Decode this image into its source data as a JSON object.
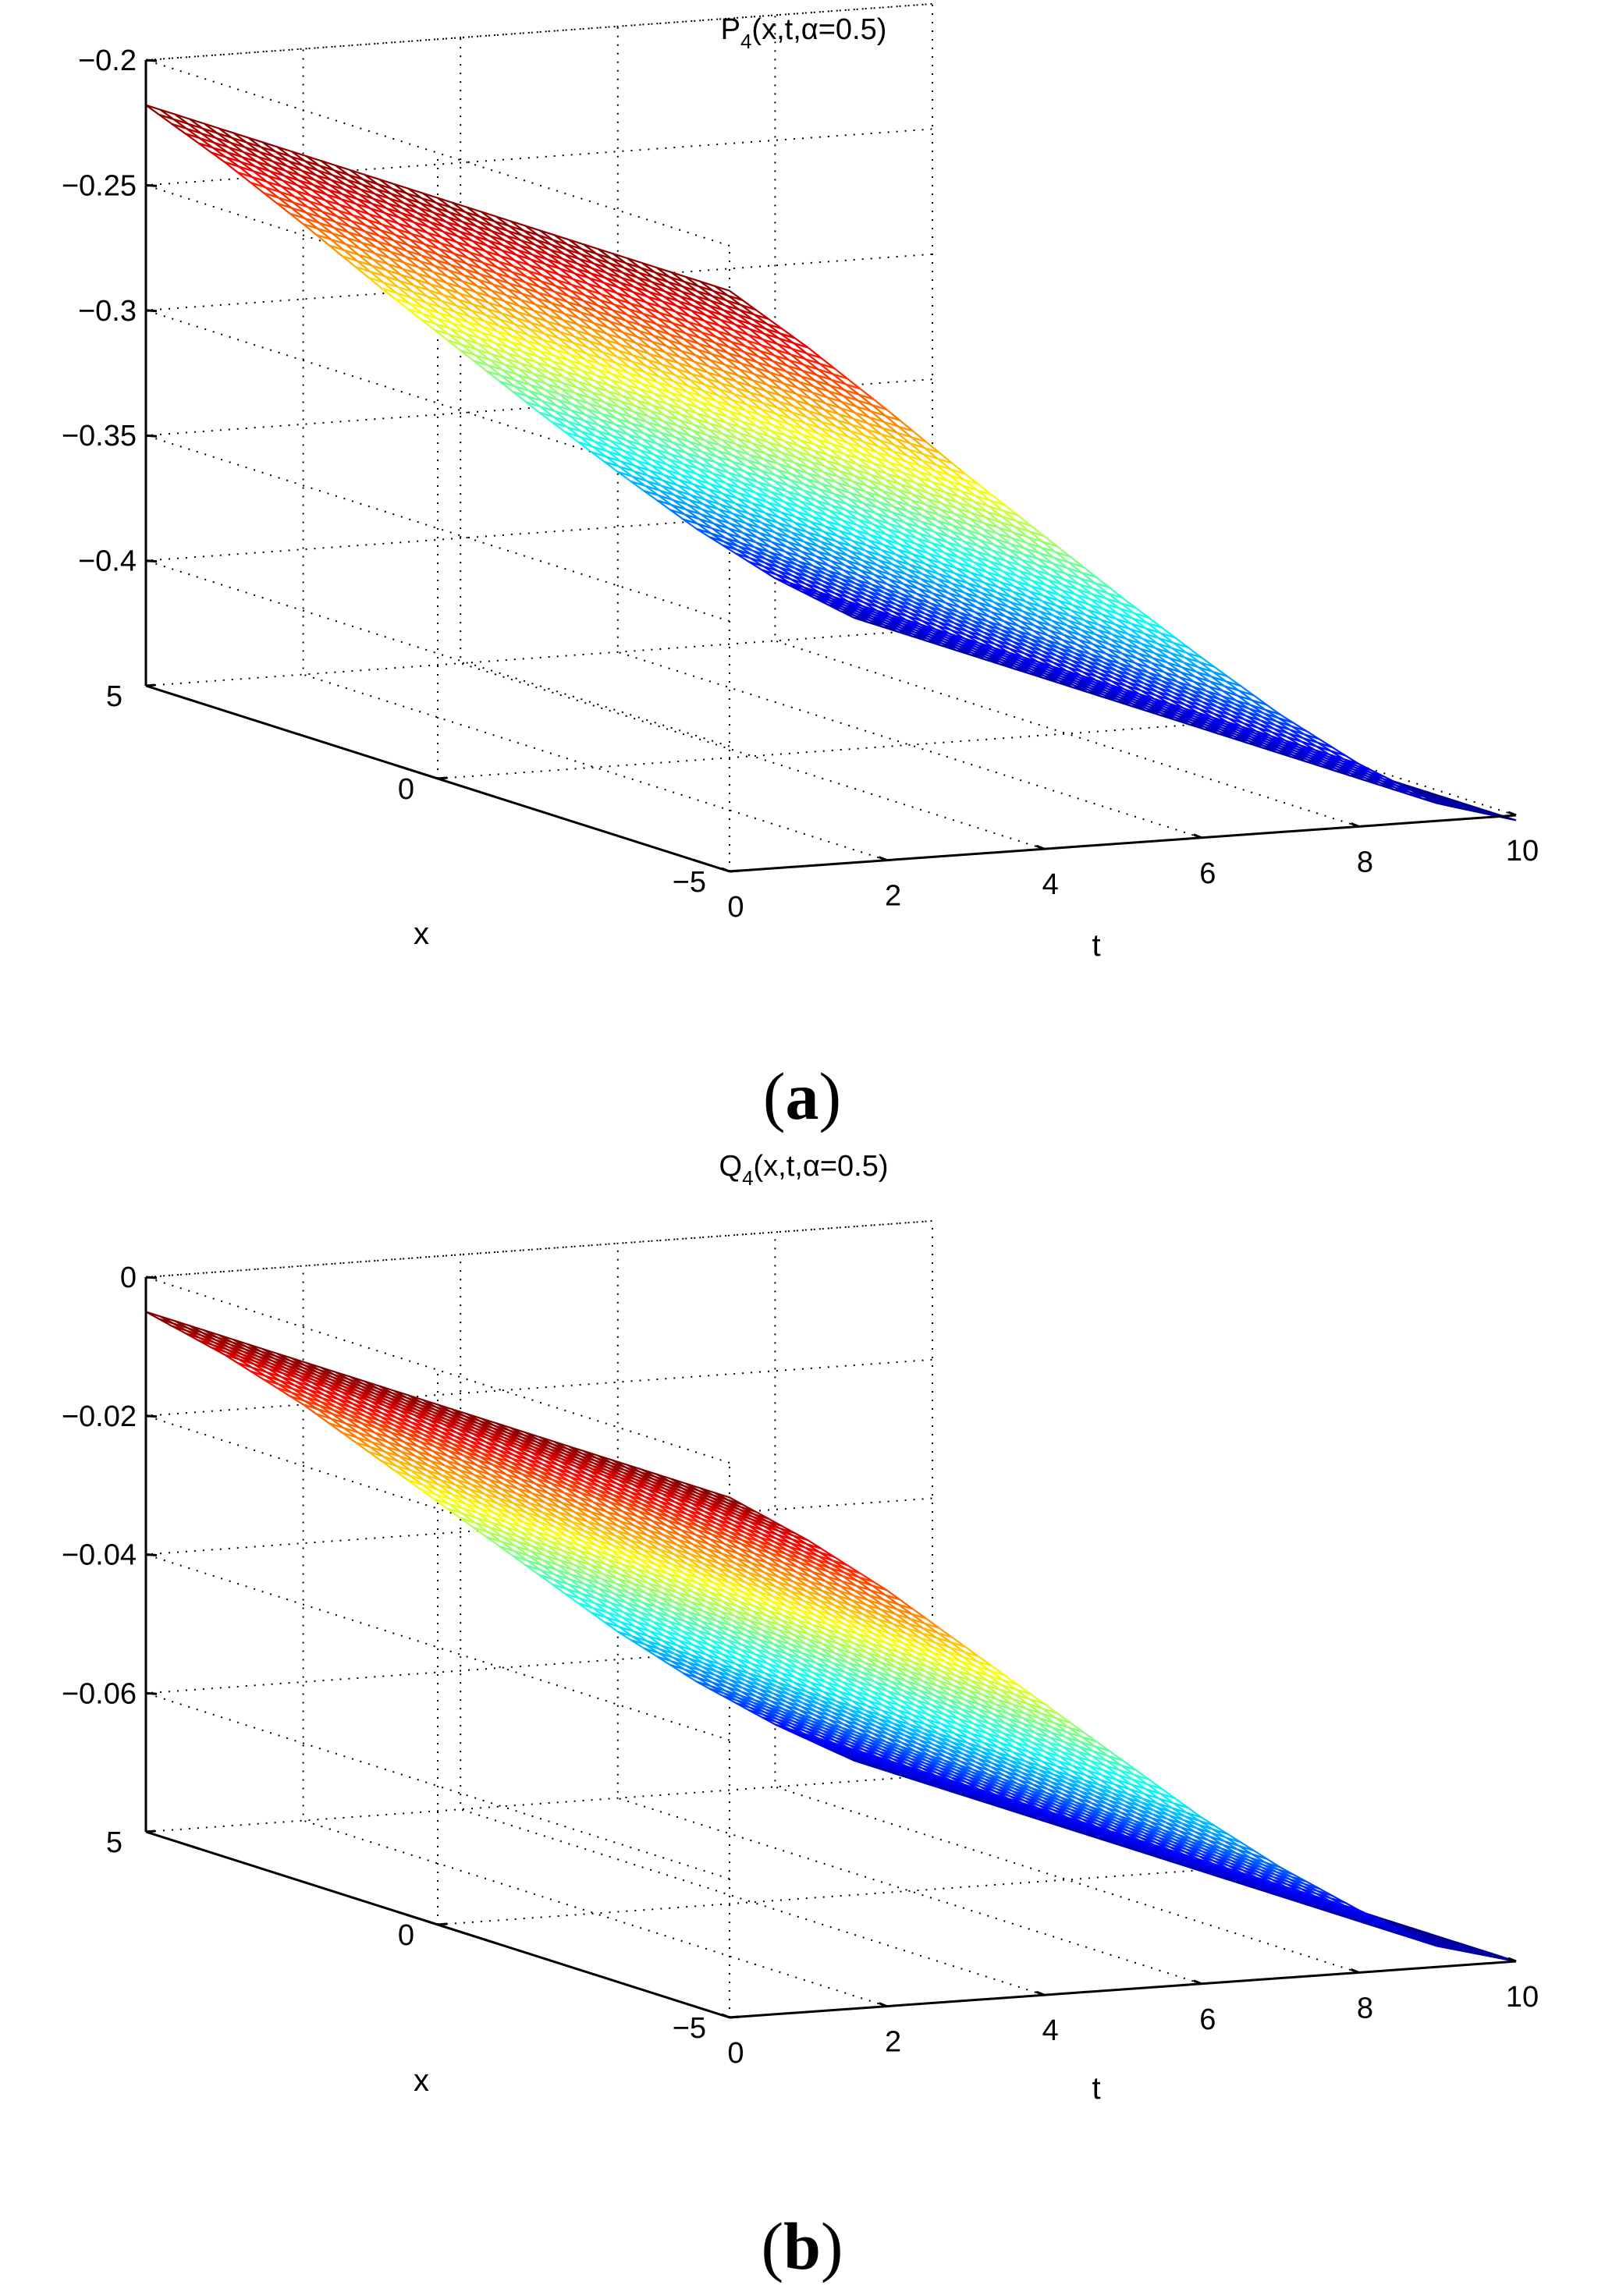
{
  "figure": {
    "panels": [
      {
        "label_open": "(",
        "label_letter": "a",
        "label_close": ")"
      },
      {
        "label_open": "(",
        "label_letter": "b",
        "label_close": ")"
      }
    ]
  },
  "chart_data": [
    {
      "type": "surface",
      "title_base": "P",
      "title_sub": "4",
      "title_rest": "(x,t,α=0.5)",
      "xlabel": "x",
      "tlabel": "t",
      "zlabel": "",
      "x_range": [
        -5,
        5
      ],
      "t_range": [
        0,
        10
      ],
      "z_range": [
        -0.45,
        -0.2
      ],
      "x_ticks": [
        -5,
        0,
        5
      ],
      "t_ticks": [
        0,
        2,
        4,
        6,
        8,
        10
      ],
      "z_ticks": [
        -0.4,
        -0.35,
        -0.3,
        -0.25,
        -0.2
      ],
      "x_tick_labels": [
        "−5",
        "0",
        "5"
      ],
      "t_tick_labels": [
        "0",
        "2",
        "4",
        "6",
        "8",
        "10"
      ],
      "z_tick_labels": [
        "−0.4",
        "−0.35",
        "−0.3",
        "−0.25",
        "−0.2"
      ],
      "surface_t": [
        0,
        1,
        2,
        3,
        4,
        5,
        6,
        7,
        8,
        9,
        10
      ],
      "surface_z": [
        -0.218,
        -0.243,
        -0.27,
        -0.298,
        -0.325,
        -0.352,
        -0.378,
        -0.403,
        -0.425,
        -0.443,
        -0.452
      ],
      "surface_depends_on_x": false,
      "grid": true,
      "colormap": "jet"
    },
    {
      "type": "surface",
      "title_base": "Q",
      "title_sub": "4",
      "title_rest": "(x,t,α=0.5)",
      "xlabel": "x",
      "tlabel": "t",
      "zlabel": "",
      "x_range": [
        -5,
        5
      ],
      "t_range": [
        0,
        10
      ],
      "z_range": [
        -0.08,
        0
      ],
      "x_ticks": [
        -5,
        0,
        5
      ],
      "t_ticks": [
        0,
        2,
        4,
        6,
        8,
        10
      ],
      "z_ticks": [
        -0.06,
        -0.04,
        -0.02,
        0
      ],
      "x_tick_labels": [
        "−5",
        "0",
        "5"
      ],
      "t_tick_labels": [
        "0",
        "2",
        "4",
        "6",
        "8",
        "10"
      ],
      "z_tick_labels": [
        "−0.06",
        "−0.04",
        "−0.02",
        "0"
      ],
      "surface_t": [
        0,
        1,
        2,
        3,
        4,
        5,
        6,
        7,
        8,
        9,
        10
      ],
      "surface_z": [
        -0.005,
        -0.012,
        -0.02,
        -0.029,
        -0.038,
        -0.047,
        -0.056,
        -0.064,
        -0.071,
        -0.077,
        -0.08
      ],
      "surface_depends_on_x": false,
      "grid": true,
      "colormap": "jet"
    }
  ]
}
